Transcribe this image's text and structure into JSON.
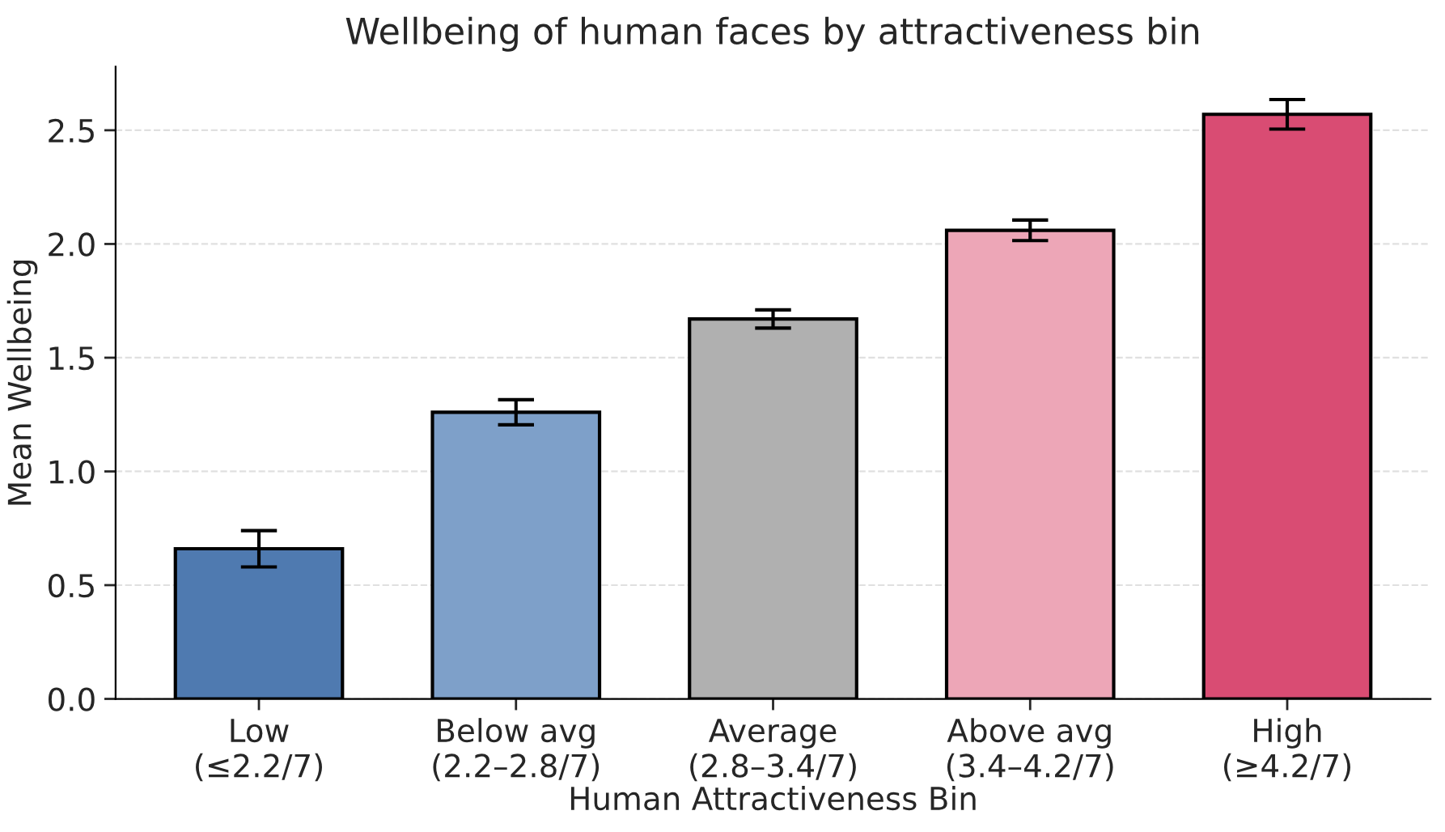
{
  "chart_data": {
    "type": "bar",
    "title": "Wellbeing of human faces by attractiveness bin",
    "xlabel": "Human Attractiveness Bin",
    "ylabel": "Mean Wellbeing",
    "categories": [
      "Low\n(≤2.2/7)",
      "Below avg\n(2.2–2.8/7)",
      "Average\n(2.8–3.4/7)",
      "Above avg\n(3.4–4.2/7)",
      "High\n(≥4.2/7)"
    ],
    "values": [
      0.66,
      1.26,
      1.67,
      2.06,
      2.57
    ],
    "errors": [
      0.08,
      0.055,
      0.04,
      0.045,
      0.065
    ],
    "colors": [
      "#4f7ab0",
      "#7ea0c9",
      "#b0b0b0",
      "#eda6b7",
      "#d94c73"
    ],
    "ylim": [
      0,
      2.78
    ],
    "yticks": [
      {
        "value": 0,
        "label": "0.0"
      },
      0.5,
      {
        "value": 1,
        "label": "1.0"
      },
      1.5,
      {
        "value": 2,
        "label": "2.0"
      },
      2.5
    ],
    "grid": "y"
  }
}
